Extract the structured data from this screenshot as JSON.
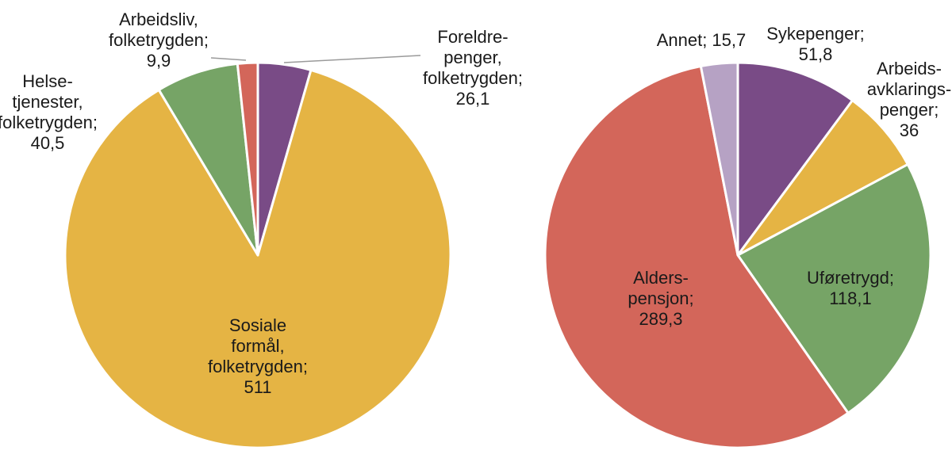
{
  "chart_data": [
    {
      "type": "pie",
      "title": "",
      "start_angle_deg": 0,
      "direction": "clockwise",
      "slices": [
        {
          "lines": [
            "Foreldre-",
            "penger,",
            "folketrygden;",
            "26,1"
          ],
          "value": 26.1,
          "color": "#794b86"
        },
        {
          "lines": [
            "Sosiale",
            "formål,",
            "folketrygden;",
            "511"
          ],
          "value": 511,
          "color": "#e5b444"
        },
        {
          "lines": [
            "Helse-",
            "tjenester,",
            "folketrygden;",
            "40,5"
          ],
          "value": 40.5,
          "color": "#76a466"
        },
        {
          "lines": [
            "Arbeidsliv,",
            "folketrygden;",
            "9,9"
          ],
          "value": 9.9,
          "color": "#d3665a"
        }
      ]
    },
    {
      "type": "pie",
      "title": "",
      "start_angle_deg": 0,
      "direction": "clockwise",
      "slices": [
        {
          "lines": [
            "Sykepenger;",
            "51,8"
          ],
          "value": 51.8,
          "color": "#794b86"
        },
        {
          "lines": [
            "Arbeids-",
            "avklarings-",
            "penger;",
            "36"
          ],
          "value": 36,
          "color": "#e5b444"
        },
        {
          "lines": [
            "Uføretrygd;",
            "118,1"
          ],
          "value": 118.1,
          "color": "#76a466"
        },
        {
          "lines": [
            "Alders-",
            "pensjon;",
            "289,3"
          ],
          "value": 289.3,
          "color": "#d3665a"
        },
        {
          "lines": [
            "Annet; 15,7"
          ],
          "value": 15.7,
          "color": "#b6a2c4"
        }
      ]
    }
  ]
}
